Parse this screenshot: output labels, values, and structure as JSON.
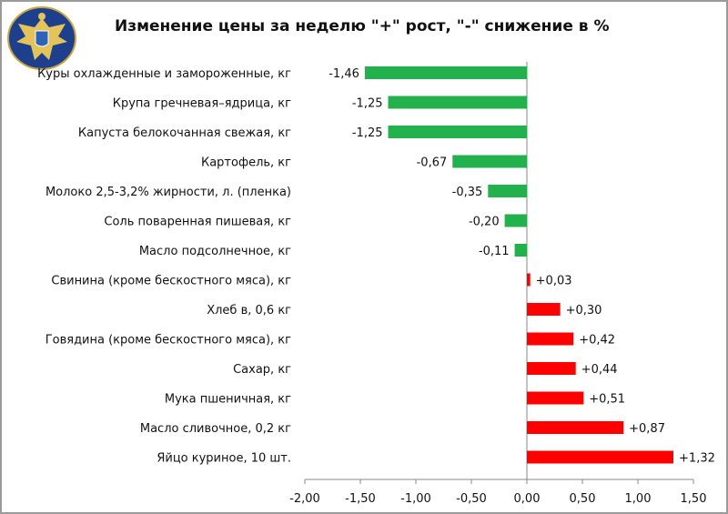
{
  "logo": {
    "name": "emblem-logo"
  },
  "chart_data": {
    "type": "bar",
    "orientation": "horizontal",
    "title": "Изменение цены за неделю \"+\" рост, \"-\" снижение в %",
    "categories": [
      "Куры охлажденные и замороженные, кг",
      "Крупа гречневая–ядрица, кг",
      "Капуста белокочанная свежая, кг",
      "Картофель, кг",
      "Молоко 2,5-3,2% жирности, л. (пленка)",
      "Соль поваренная пишевая, кг",
      "Масло подсолнечное, кг",
      "Свинина (кроме бескостного мяса), кг",
      "Хлеб в, 0,6 кг",
      "Говядина (кроме бескостного мяса), кг",
      "Сахар, кг",
      "Мука пшеничная, кг",
      "Масло сливочное, 0,2 кг",
      "Яйцо куриное, 10 шт."
    ],
    "values": [
      -1.46,
      -1.25,
      -1.25,
      -0.67,
      -0.35,
      -0.2,
      -0.11,
      0.03,
      0.3,
      0.42,
      0.44,
      0.51,
      0.87,
      1.32
    ],
    "data_labels": [
      "-1,46",
      "-1,25",
      "-1,25",
      "-0,67",
      "-0,35",
      "-0,20",
      "-0,11",
      "+0,03",
      "+0,30",
      "+0,42",
      "+0,44",
      "+0,51",
      "+0,87",
      "+1,32"
    ],
    "xlim": [
      -2.0,
      1.5
    ],
    "x_ticks": [
      "-2,00",
      "-1,50",
      "-1,00",
      "-0,50",
      "0,00",
      "0,50",
      "1,00",
      "1,50"
    ],
    "grid": false,
    "legend": "none",
    "colors": {
      "negative": "#22b14c",
      "positive": "#ff0000"
    }
  }
}
